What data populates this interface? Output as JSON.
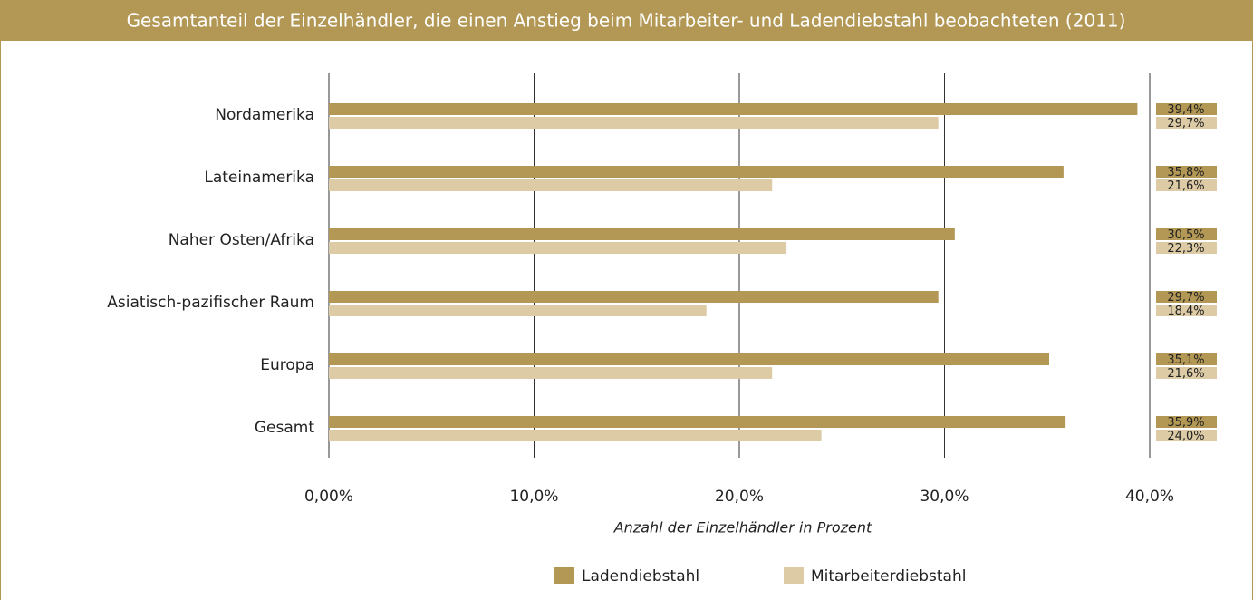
{
  "chart_data": {
    "type": "bar",
    "orientation": "horizontal",
    "title": "Gesamtanteil der Einzelhändler, die einen Anstieg beim Mitarbeiter- und Ladendiebstahl beobachteten (2011)",
    "categories": [
      "Nordamerika",
      "Lateinamerika",
      "Naher Osten/Afrika",
      "Asiatisch-pazifischer Raum",
      "Europa",
      "Gesamt"
    ],
    "series": [
      {
        "name": "Ladendiebstahl",
        "color": "#b39855",
        "values": [
          39.4,
          35.8,
          30.5,
          29.7,
          35.1,
          35.9
        ],
        "value_labels": [
          "39,4%",
          "35,8%",
          "30,5%",
          "29,7%",
          "35,1%",
          "35,9%"
        ]
      },
      {
        "name": "Mitarbeiterdiebstahl",
        "color": "#ddcba6",
        "values": [
          29.7,
          21.6,
          22.3,
          18.4,
          21.6,
          24.0
        ],
        "value_labels": [
          "29,7%",
          "21,6%",
          "22,3%",
          "18,4%",
          "21,6%",
          "24,0%"
        ]
      }
    ],
    "xlim": [
      0,
      40
    ],
    "xticks": [
      {
        "value": 0,
        "label": "0,00%"
      },
      {
        "value": 10,
        "label": "10,0%"
      },
      {
        "value": 20,
        "label": "20,0%"
      },
      {
        "value": 30,
        "label": "30,0%"
      },
      {
        "value": 40,
        "label": "40,0%"
      }
    ],
    "xlabel": "Anzahl der Einzelhändler in Prozent",
    "grid": true,
    "legend": "bottom"
  }
}
